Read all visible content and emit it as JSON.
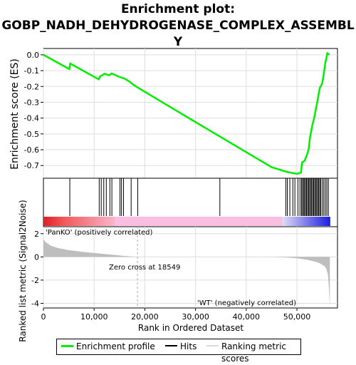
{
  "title": {
    "line1": "Enrichment plot:",
    "line2": "GOBP_NADH_DEHYDROGENASE_COMPLEX_ASSEMBL",
    "line3": "Y"
  },
  "colors": {
    "enrichment": "#00ee00",
    "hits": "#000000",
    "metric_fill": "#bebebe",
    "positive_text": "#e41a1c",
    "negative_text": "#1a1adc",
    "zero_line": "#aaaaaa"
  },
  "labels": {
    "es_ylabel": "Enrichment score (ES)",
    "metric_ylabel": "Ranked list metric (Signal2Noise)",
    "xlabel": "Rank in Ordered Dataset",
    "pos_corr": "'PanKO' (positively correlated)",
    "neg_corr": "'WT' (negatively correlated)",
    "zero_cross": "Zero cross at 18549"
  },
  "legend": {
    "enrichment": "Enrichment profile",
    "hits": "Hits",
    "metric": "Ranking metric scores"
  },
  "chart_data": {
    "type": "line",
    "x_range": [
      0,
      58000
    ],
    "x_ticks": [
      0,
      10000,
      20000,
      30000,
      40000,
      50000
    ],
    "x_tick_labels": [
      "0",
      "10,000",
      "20,000",
      "30,000",
      "40,000",
      "50,000"
    ],
    "es_ylim": [
      -0.78,
      0.04
    ],
    "es_ticks": [
      0.0,
      -0.1,
      -0.2,
      -0.3,
      -0.4,
      -0.5,
      -0.6,
      -0.7
    ],
    "es_tick_labels": [
      "0.0",
      "-0.1",
      "-0.2",
      "-0.3",
      "-0.4",
      "-0.5",
      "-0.6",
      "-0.7"
    ],
    "metric_ylim": [
      -4.4,
      2.6
    ],
    "metric_ticks": [
      2,
      0,
      -2,
      -4
    ],
    "metric_tick_labels": [
      "2",
      "0",
      "-2",
      "-4"
    ],
    "zero_cross": 18549,
    "total_rank": 56500,
    "enrichment_profile": {
      "x": [
        0,
        5100,
        5300,
        10900,
        11200,
        11600,
        12000,
        12500,
        13000,
        13400,
        14000,
        15000,
        16000,
        17000,
        18000,
        25000,
        35000,
        45000,
        48000,
        50000,
        50800,
        51000,
        51500,
        52000,
        52300,
        52600,
        53000,
        53400,
        54000,
        54500,
        55000,
        55300,
        55600,
        56000,
        56400
      ],
      "y": [
        0.0,
        -0.09,
        -0.055,
        -0.155,
        -0.135,
        -0.13,
        -0.12,
        -0.125,
        -0.13,
        -0.118,
        -0.125,
        -0.14,
        -0.15,
        -0.17,
        -0.195,
        -0.33,
        -0.52,
        -0.71,
        -0.74,
        -0.752,
        -0.745,
        -0.68,
        -0.67,
        -0.63,
        -0.6,
        -0.52,
        -0.45,
        -0.4,
        -0.3,
        -0.21,
        -0.18,
        -0.12,
        -0.05,
        0.01,
        0.0
      ]
    },
    "hits": [
      5200,
      11000,
      11400,
      11900,
      12400,
      13100,
      13500,
      15100,
      15400,
      15800,
      17300,
      18600,
      34800,
      47800,
      48100,
      48600,
      49200,
      49600,
      50200,
      50600,
      50900,
      51100,
      51300,
      51500,
      51700,
      51900,
      52100,
      52300,
      52500,
      52700,
      52900,
      53100,
      53300,
      53500,
      53700,
      53900,
      54100,
      54300,
      54500,
      54700,
      55000,
      55300,
      55600,
      55900,
      56200
    ],
    "ranked_metric": {
      "x": [
        0,
        500,
        1500,
        3000,
        5000,
        8000,
        12000,
        16000,
        18549,
        25000,
        35000,
        45000,
        48000,
        50000,
        52000,
        53500,
        54500,
        55300,
        55800,
        56100,
        56300,
        56500
      ],
      "y": [
        1.5,
        1.25,
        0.95,
        0.75,
        0.58,
        0.42,
        0.25,
        0.08,
        0.0,
        0.0,
        0.0,
        0.0,
        -0.05,
        -0.12,
        -0.25,
        -0.4,
        -0.55,
        -0.75,
        -1.0,
        -1.5,
        -2.6,
        -4.3
      ]
    }
  }
}
